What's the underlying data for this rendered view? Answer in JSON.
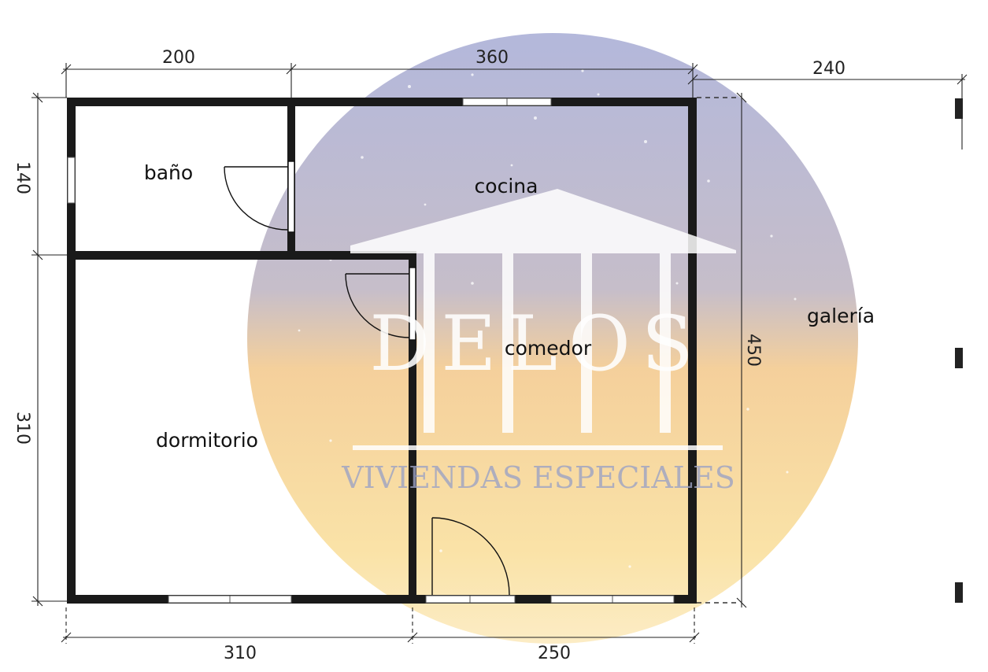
{
  "dimensions": {
    "top_left": "200",
    "top_mid": "360",
    "top_right": "240",
    "left_top": "140",
    "left_bottom": "310",
    "right": "450",
    "bottom_left": "310",
    "bottom_right": "250"
  },
  "rooms": {
    "bano": "baño",
    "cocina": "cocina",
    "comedor": "comedor",
    "dormitorio": "dormitorio",
    "galeria": "galería"
  },
  "watermark": {
    "brand": "DELOS",
    "tagline": "VIVIENDAS ESPECIALES"
  },
  "colors": {
    "wall": "#1a1a1a",
    "watermark_top": "#8f96c8",
    "watermark_bottom": "#f6c86a"
  }
}
